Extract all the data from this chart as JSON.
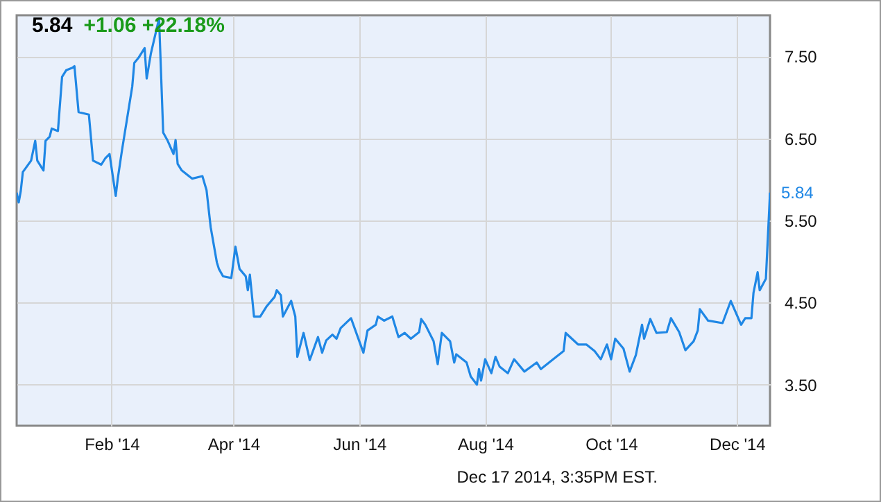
{
  "chart_data": {
    "type": "line",
    "title": "5.84",
    "subtitle": "+1.06 +22.18%",
    "annotations": [
      {
        "text": "5.84",
        "x": "2014-12-17",
        "y": 5.84
      },
      "Dec 17 2014, 3:35PM EST."
    ],
    "x": [
      "2013-12-17",
      "2013-12-18",
      "2013-12-19",
      "2013-12-20",
      "2013-12-24",
      "2013-12-26",
      "2013-12-27",
      "2013-12-30",
      "2013-12-31",
      "2014-01-02",
      "2014-01-03",
      "2014-01-06",
      "2014-01-08",
      "2014-01-10",
      "2014-01-13",
      "2014-01-14",
      "2014-01-16",
      "2014-01-21",
      "2014-01-23",
      "2014-01-27",
      "2014-01-29",
      "2014-01-31",
      "2014-02-03",
      "2014-02-04",
      "2014-02-06",
      "2014-02-11",
      "2014-02-12",
      "2014-02-14",
      "2014-02-17",
      "2014-02-18",
      "2014-02-20",
      "2014-02-24",
      "2014-02-26",
      "2014-02-28",
      "2014-03-03",
      "2014-03-04",
      "2014-03-05",
      "2014-03-07",
      "2014-03-12",
      "2014-03-17",
      "2014-03-19",
      "2014-03-21",
      "2014-03-24",
      "2014-03-25",
      "2014-03-27",
      "2014-03-31",
      "2014-04-02",
      "2014-04-04",
      "2014-04-07",
      "2014-04-08",
      "2014-04-09",
      "2014-04-11",
      "2014-04-14",
      "2014-04-17",
      "2014-04-21",
      "2014-04-22",
      "2014-04-24",
      "2014-04-25",
      "2014-04-29",
      "2014-05-01",
      "2014-05-02",
      "2014-05-05",
      "2014-05-08",
      "2014-05-12",
      "2014-05-14",
      "2014-05-16",
      "2014-05-19",
      "2014-05-21",
      "2014-05-23",
      "2014-05-28",
      "2014-06-03",
      "2014-06-05",
      "2014-06-09",
      "2014-06-10",
      "2014-06-13",
      "2014-06-17",
      "2014-06-20",
      "2014-06-23",
      "2014-06-26",
      "2014-06-30",
      "2014-07-01",
      "2014-07-03",
      "2014-07-07",
      "2014-07-09",
      "2014-07-11",
      "2014-07-15",
      "2014-07-17",
      "2014-07-18",
      "2014-07-23",
      "2014-07-25",
      "2014-07-28",
      "2014-07-29",
      "2014-07-30",
      "2014-08-01",
      "2014-08-04",
      "2014-08-06",
      "2014-08-08",
      "2014-08-12",
      "2014-08-15",
      "2014-08-20",
      "2014-08-26",
      "2014-08-28",
      "2014-09-03",
      "2014-09-08",
      "2014-09-09",
      "2014-09-15",
      "2014-09-19",
      "2014-09-23",
      "2014-09-26",
      "2014-09-29",
      "2014-10-01",
      "2014-10-03",
      "2014-10-07",
      "2014-10-10",
      "2014-10-13",
      "2014-10-16",
      "2014-10-17",
      "2014-10-20",
      "2014-10-23",
      "2014-10-28",
      "2014-10-30",
      "2014-11-03",
      "2014-11-06",
      "2014-11-10",
      "2014-11-12",
      "2014-11-13",
      "2014-11-17",
      "2014-11-24",
      "2014-11-28",
      "2014-12-03",
      "2014-12-05",
      "2014-12-08",
      "2014-12-09",
      "2014-12-11",
      "2014-12-12",
      "2014-12-15",
      "2014-12-17"
    ],
    "series": [
      {
        "color": "#1f87e5",
        "values": [
          5.84,
          5.72,
          5.86,
          6.09,
          6.23,
          6.47,
          6.23,
          6.11,
          6.47,
          6.52,
          6.62,
          6.59,
          7.25,
          7.33,
          7.36,
          7.38,
          6.82,
          6.79,
          6.23,
          6.18,
          6.26,
          6.31,
          5.8,
          6.01,
          6.35,
          7.13,
          7.42,
          7.48,
          7.6,
          7.23,
          7.53,
          7.96,
          6.57,
          6.48,
          6.31,
          6.48,
          6.19,
          6.11,
          6.01,
          6.04,
          5.87,
          5.42,
          4.99,
          4.91,
          4.82,
          4.8,
          5.18,
          4.91,
          4.82,
          4.65,
          4.84,
          4.33,
          4.33,
          4.45,
          4.57,
          4.65,
          4.59,
          4.33,
          4.52,
          4.33,
          3.84,
          4.13,
          3.8,
          4.08,
          3.89,
          4.04,
          4.11,
          4.06,
          4.19,
          4.31,
          3.89,
          4.16,
          4.23,
          4.33,
          4.28,
          4.33,
          4.08,
          4.13,
          4.06,
          4.14,
          4.3,
          4.23,
          4.03,
          3.75,
          4.13,
          4.03,
          3.77,
          3.87,
          3.77,
          3.6,
          3.5,
          3.69,
          3.55,
          3.81,
          3.64,
          3.84,
          3.72,
          3.64,
          3.81,
          3.66,
          3.77,
          3.69,
          3.81,
          3.91,
          4.13,
          3.99,
          3.99,
          3.91,
          3.81,
          3.99,
          3.81,
          4.06,
          3.94,
          3.66,
          3.86,
          4.23,
          4.06,
          4.3,
          4.13,
          4.14,
          4.31,
          4.14,
          3.92,
          4.03,
          4.16,
          4.42,
          4.28,
          4.25,
          4.52,
          4.23,
          4.31,
          4.31,
          4.62,
          4.87,
          4.65,
          4.79,
          5.84
        ]
      }
    ],
    "xlim": [
      "2013-12-17",
      "2014-12-17"
    ],
    "xticks": [
      {
        "value": "2014-02-01",
        "label": "Feb '14"
      },
      {
        "value": "2014-04-01",
        "label": "Apr '14"
      },
      {
        "value": "2014-06-01",
        "label": "Jun '14"
      },
      {
        "value": "2014-08-01",
        "label": "Aug '14"
      },
      {
        "value": "2014-10-01",
        "label": "Oct '14"
      },
      {
        "value": "2014-12-01",
        "label": "Dec '14"
      }
    ],
    "ylim": [
      3.0,
      8.0
    ],
    "yticks": [
      {
        "value": 3.5,
        "label": "3.50"
      },
      {
        "value": 4.5,
        "label": "4.50"
      },
      {
        "value": 5.5,
        "label": "5.50"
      },
      {
        "value": 6.5,
        "label": "6.50"
      },
      {
        "value": 7.5,
        "label": "7.50"
      }
    ],
    "grid": true
  }
}
